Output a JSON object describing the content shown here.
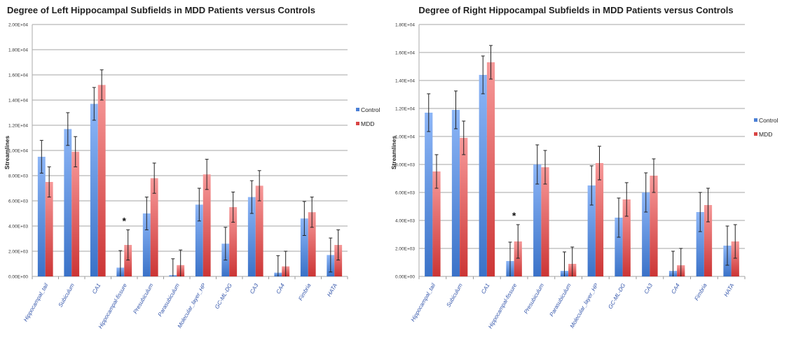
{
  "chart_data": [
    {
      "type": "bar",
      "title": "Degree of Left Hippocampal Subfields in MDD Patients versus Controls",
      "xlabel": "",
      "ylabel": "Streamlines",
      "ylim": [
        0,
        20000
      ],
      "yticks": [
        0,
        2000,
        4000,
        6000,
        8000,
        10000,
        12000,
        14000,
        16000,
        18000,
        20000
      ],
      "ytick_labels": [
        "0.00E+00",
        "2.00E+03",
        "4.00E+03",
        "6.00E+03",
        "8.00E+03",
        "1.00E+04",
        "1.20E+04",
        "1.40E+04",
        "1.60E+04",
        "1.80E+04",
        "2.00E+04"
      ],
      "grid": true,
      "legend_position": "right",
      "categories": [
        "Hippocampal_tail",
        "Subiculum",
        "CA1",
        "Hippocampal-fissure",
        "Presubiculum",
        "Parasubiculum",
        "Molecular_layer_HP",
        "GC-ML-DG",
        "CA3",
        "CA4",
        "Fimbria",
        "HATA"
      ],
      "series": [
        {
          "name": "Control",
          "color": "#4a7fd6",
          "values": [
            9500,
            11700,
            13700,
            700,
            5000,
            100,
            5700,
            2600,
            6300,
            300,
            4600,
            1700
          ],
          "errors": [
            1300,
            1300,
            1300,
            1350,
            1300,
            1300,
            1300,
            1300,
            1300,
            1350,
            1350,
            1350
          ]
        },
        {
          "name": "MDD",
          "color": "#d94444",
          "values": [
            7500,
            9900,
            15200,
            2500,
            7800,
            900,
            8100,
            5500,
            7200,
            800,
            5100,
            2500
          ],
          "errors": [
            1200,
            1200,
            1200,
            1200,
            1200,
            1200,
            1200,
            1200,
            1200,
            1200,
            1200,
            1200
          ]
        }
      ],
      "annotations": [
        {
          "category": "Hippocampal-fissure",
          "text": "*"
        }
      ]
    },
    {
      "type": "bar",
      "title": "Degree of Right Hippocampal Subfields in MDD Patients versus Controls",
      "xlabel": "",
      "ylabel": "Streamlines",
      "ylim": [
        0,
        18000
      ],
      "yticks": [
        0,
        2000,
        4000,
        6000,
        8000,
        10000,
        12000,
        14000,
        16000,
        18000
      ],
      "ytick_labels": [
        "0.00E+00",
        "2.00E+03",
        "4.00E+03",
        "6.00E+03",
        "8.00E+03",
        "1.00E+04",
        "1.20E+04",
        "1.40E+04",
        "1.60E+04",
        "1.80E+04"
      ],
      "grid": true,
      "legend_position": "right",
      "categories": [
        "Hippocampal_tail",
        "Subiculum",
        "CA1",
        "Hippocampal-fissure",
        "Presubiculum",
        "Parasubiculum",
        "Molecular_layer_HP",
        "GC-ML-DG",
        "CA3",
        "CA4",
        "Fimbria",
        "HATA"
      ],
      "series": [
        {
          "name": "Control",
          "color": "#4a7fd6",
          "values": [
            11700,
            11900,
            14400,
            1100,
            8000,
            400,
            6500,
            4200,
            6000,
            400,
            4600,
            2200
          ],
          "errors": [
            1350,
            1350,
            1350,
            1350,
            1400,
            1350,
            1400,
            1400,
            1400,
            1400,
            1400,
            1400
          ]
        },
        {
          "name": "MDD",
          "color": "#d94444",
          "values": [
            7500,
            9900,
            15300,
            2500,
            7800,
            900,
            8100,
            5500,
            7200,
            800,
            5100,
            2500
          ],
          "errors": [
            1200,
            1200,
            1200,
            1200,
            1200,
            1200,
            1200,
            1200,
            1200,
            1200,
            1200,
            1200
          ]
        }
      ],
      "annotations": [
        {
          "category": "Hippocampal-fissure",
          "text": "*"
        }
      ]
    }
  ]
}
